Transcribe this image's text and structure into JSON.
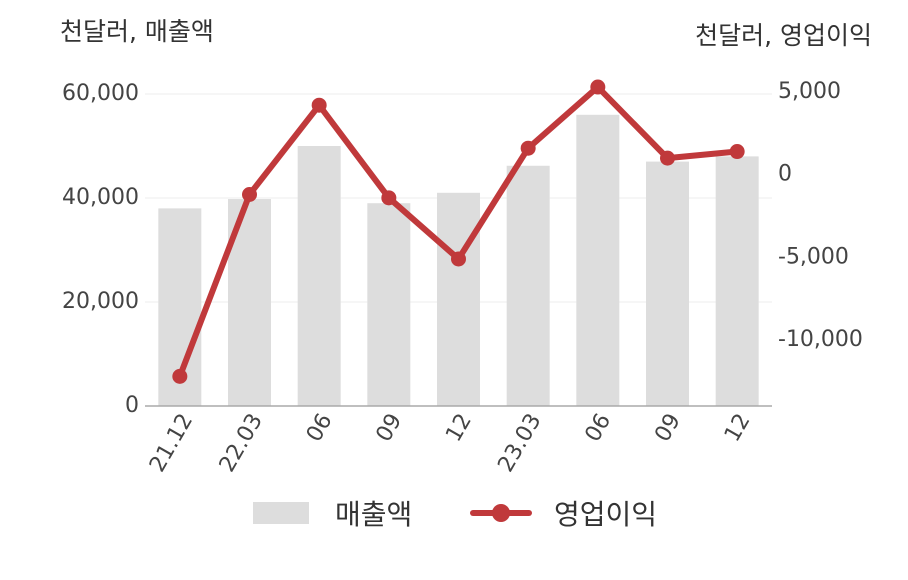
{
  "chart_data": {
    "type": "bar+line",
    "categories": [
      "21.12",
      "22.03",
      "06",
      "09",
      "12",
      "23.03",
      "06",
      "09",
      "12"
    ],
    "left_unit": "천달러, 매출액",
    "right_unit": "천달러, 영업이익",
    "series": [
      {
        "name": "매출액",
        "type": "bar",
        "axis": "left",
        "values": [
          38000,
          39800,
          50000,
          39000,
          41000,
          46200,
          56000,
          47000,
          48000
        ]
      },
      {
        "name": "영업이익",
        "type": "line",
        "axis": "right",
        "values": [
          -12200,
          -1200,
          4200,
          -1400,
          -5100,
          1600,
          5300,
          1000,
          1400
        ]
      }
    ],
    "left_ylim": [
      0,
      60000
    ],
    "left_ticks": [
      0,
      20000,
      40000,
      60000
    ],
    "left_tick_labels": [
      "0",
      "20,000",
      "40,000",
      "60,000"
    ],
    "right_ylim": [
      -10000,
      5000
    ],
    "right_ticks": [
      -10000,
      -5000,
      0,
      5000
    ],
    "right_tick_labels": [
      "-10,000",
      "-5,000",
      "0",
      "5,000"
    ],
    "grid": true,
    "legend": "bottom",
    "colors": {
      "bar": "#dddddd",
      "line": "#c0393b",
      "grid": "#eeeeee",
      "axis": "#aaaaaa"
    }
  }
}
